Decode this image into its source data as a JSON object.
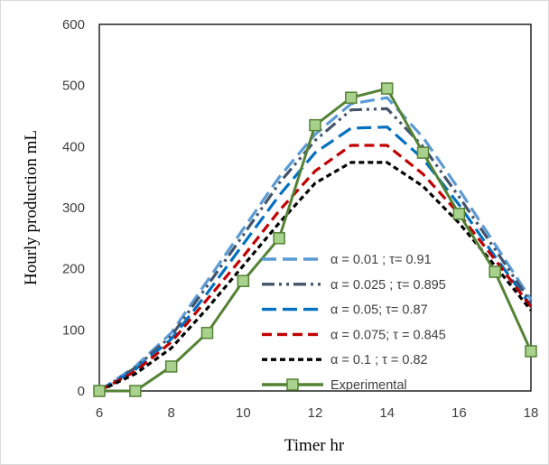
{
  "chart_data": {
    "type": "line",
    "title": "",
    "xlabel": "Timer  hr",
    "ylabel": "Hourly production  mL",
    "xlim": [
      6,
      18
    ],
    "ylim": [
      0,
      600
    ],
    "x_ticks": [
      "6",
      "8",
      "10",
      "12",
      "14",
      "16",
      "18"
    ],
    "y_ticks": [
      "0",
      "100",
      "200",
      "300",
      "400",
      "500",
      "600"
    ],
    "grid": false,
    "legend_position": "bottom-center-inside",
    "x": [
      6,
      7,
      8,
      9,
      10,
      11,
      12,
      13,
      14,
      15,
      16,
      17,
      18
    ],
    "series": [
      {
        "name": "α = 0.01 ;  τ= 0.91",
        "color": "#5b9bd5",
        "dash": "long-dash",
        "values": [
          0,
          40,
          95,
          180,
          265,
          350,
          420,
          470,
          480,
          415,
          330,
          240,
          150
        ]
      },
      {
        "name": "α = 0.025 ; τ= 0.895",
        "color": "#44546a",
        "dash": "dash-dot-dot",
        "values": [
          0,
          38,
          90,
          172,
          255,
          340,
          410,
          460,
          462,
          400,
          318,
          232,
          145
        ]
      },
      {
        "name": "α = 0.05; τ= 0.87",
        "color": "#0070c0",
        "dash": "long-dash",
        "values": [
          0,
          35,
          85,
          160,
          240,
          320,
          390,
          430,
          432,
          380,
          305,
          220,
          140
        ]
      },
      {
        "name": "α  = 0.075; τ = 0.845",
        "color": "#c00000",
        "dash": "dash",
        "values": [
          0,
          32,
          80,
          150,
          220,
          295,
          360,
          402,
          402,
          355,
          290,
          215,
          138
        ]
      },
      {
        "name": "α = 0.1 ; τ = 0.82",
        "color": "#000000",
        "dash": "short-dash",
        "values": [
          0,
          28,
          70,
          135,
          205,
          275,
          340,
          374,
          374,
          335,
          275,
          205,
          132
        ]
      },
      {
        "name": "Experimental",
        "color": "#548235",
        "marker_fill": "#a9d18e",
        "dash": "solid",
        "marker": "square",
        "values": [
          0,
          0,
          40,
          95,
          180,
          250,
          435,
          480,
          495,
          390,
          290,
          195,
          65
        ]
      }
    ]
  }
}
